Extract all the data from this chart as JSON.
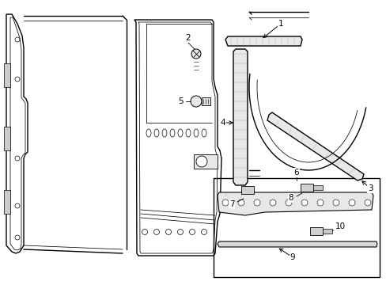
{
  "bg_color": "#ffffff",
  "line_color": "#000000",
  "light_gray": "#cccccc",
  "medium_gray": "#aaaaaa",
  "dark_gray": "#555555",
  "label_fontsize": 7.5,
  "lw_main": 1.0,
  "lw_thin": 0.55
}
